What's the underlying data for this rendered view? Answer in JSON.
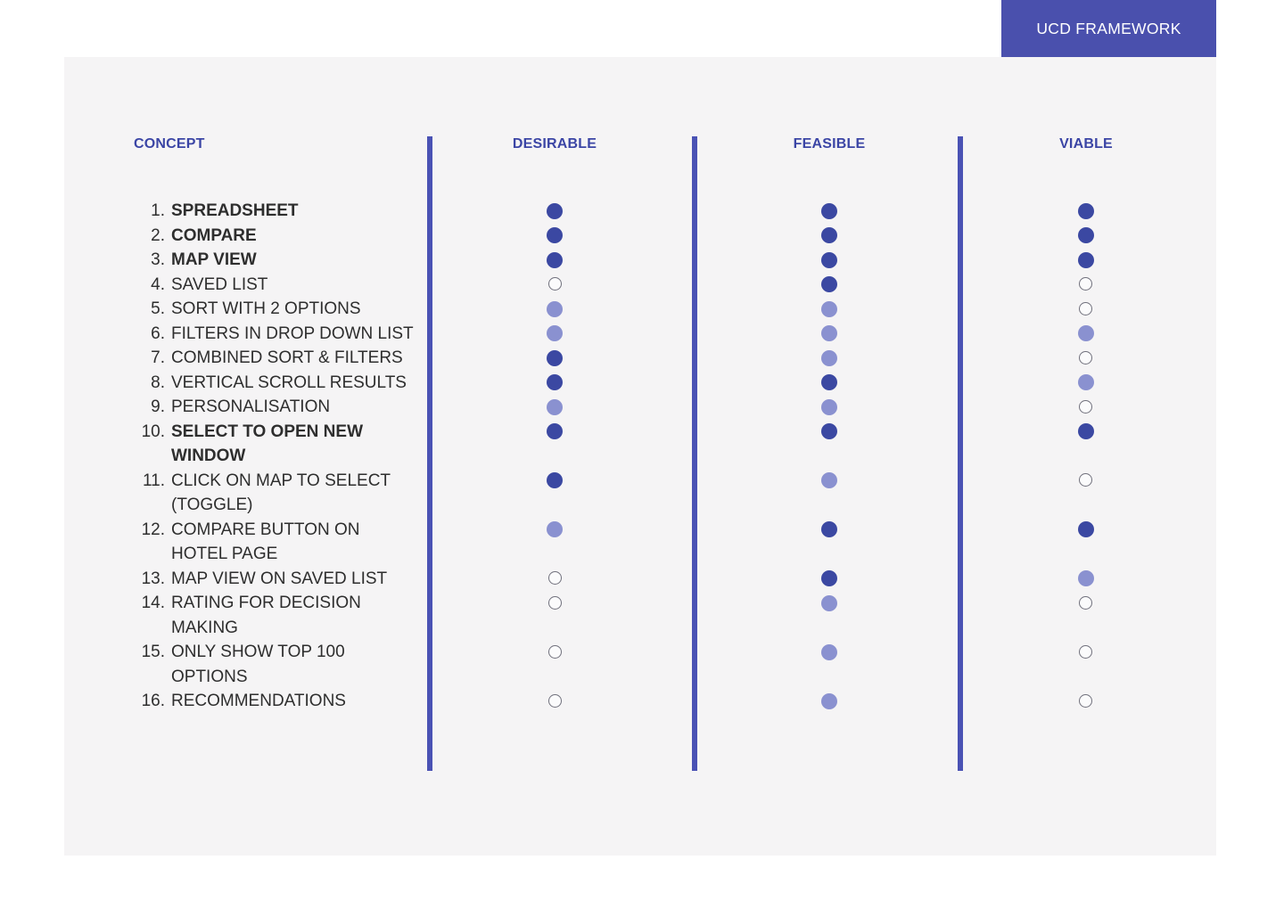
{
  "banner": {
    "title": "UCD FRAMEWORK"
  },
  "colors": {
    "banner-bg": "#4a50ad",
    "panel-bg": "#f5f4f5",
    "accent": "#3b45a5",
    "divider": "#4a52b4",
    "dot-dark": "#3b48a2",
    "dot-light": "#8a91d0",
    "empty-border": "#70707c",
    "text": "#2e2e2e"
  },
  "legend_note": "dot states: dark = strong, light = partial, empty = no",
  "table": {
    "columns": [
      "CONCEPT",
      "DESIRABLE",
      "FEASIBLE",
      "VIABLE"
    ],
    "rows": [
      {
        "num": "1.",
        "label": "SPREADSHEET",
        "bold": true,
        "ratings": [
          "dark",
          "dark",
          "dark"
        ]
      },
      {
        "num": "2.",
        "label": "COMPARE",
        "bold": true,
        "ratings": [
          "dark",
          "dark",
          "dark"
        ]
      },
      {
        "num": "3.",
        "label": "MAP VIEW",
        "bold": true,
        "ratings": [
          "dark",
          "dark",
          "dark"
        ]
      },
      {
        "num": "4.",
        "label": "SAVED LIST",
        "bold": false,
        "ratings": [
          "empty",
          "dark",
          "empty"
        ]
      },
      {
        "num": "5.",
        "label": "SORT WITH 2 OPTIONS",
        "bold": false,
        "ratings": [
          "light",
          "light",
          "empty"
        ]
      },
      {
        "num": "6.",
        "label": "FILTERS IN DROP DOWN LIST",
        "bold": false,
        "ratings": [
          "light",
          "light",
          "light"
        ]
      },
      {
        "num": "7.",
        "label": "COMBINED SORT & FILTERS",
        "bold": false,
        "ratings": [
          "dark",
          "light",
          "empty"
        ]
      },
      {
        "num": "8.",
        "label": "VERTICAL SCROLL RESULTS",
        "bold": false,
        "ratings": [
          "dark",
          "dark",
          "light"
        ]
      },
      {
        "num": "9.",
        "label": "PERSONALISATION",
        "bold": false,
        "ratings": [
          "light",
          "light",
          "empty"
        ]
      },
      {
        "num": "10.",
        "label": "SELECT TO OPEN NEW\nWINDOW",
        "bold": true,
        "ratings": [
          "dark",
          "dark",
          "dark"
        ]
      },
      {
        "num": "11.",
        "label": "CLICK ON MAP TO SELECT\n(TOGGLE)",
        "bold": false,
        "ratings": [
          "dark",
          "light",
          "empty"
        ]
      },
      {
        "num": "12.",
        "label": "COMPARE BUTTON ON\nHOTEL PAGE",
        "bold": false,
        "ratings": [
          "light",
          "dark",
          "dark"
        ]
      },
      {
        "num": "13.",
        "label": "MAP VIEW ON SAVED LIST",
        "bold": false,
        "ratings": [
          "empty",
          "dark",
          "light"
        ]
      },
      {
        "num": "14.",
        "label": "RATING FOR DECISION\nMAKING",
        "bold": false,
        "ratings": [
          "empty",
          "light",
          "empty"
        ]
      },
      {
        "num": "15.",
        "label": "ONLY SHOW TOP 100\nOPTIONS",
        "bold": false,
        "ratings": [
          "empty",
          "light",
          "empty"
        ]
      },
      {
        "num": "16.",
        "label": "RECOMMENDATIONS",
        "bold": false,
        "ratings": [
          "empty",
          "light",
          "empty"
        ]
      }
    ]
  }
}
